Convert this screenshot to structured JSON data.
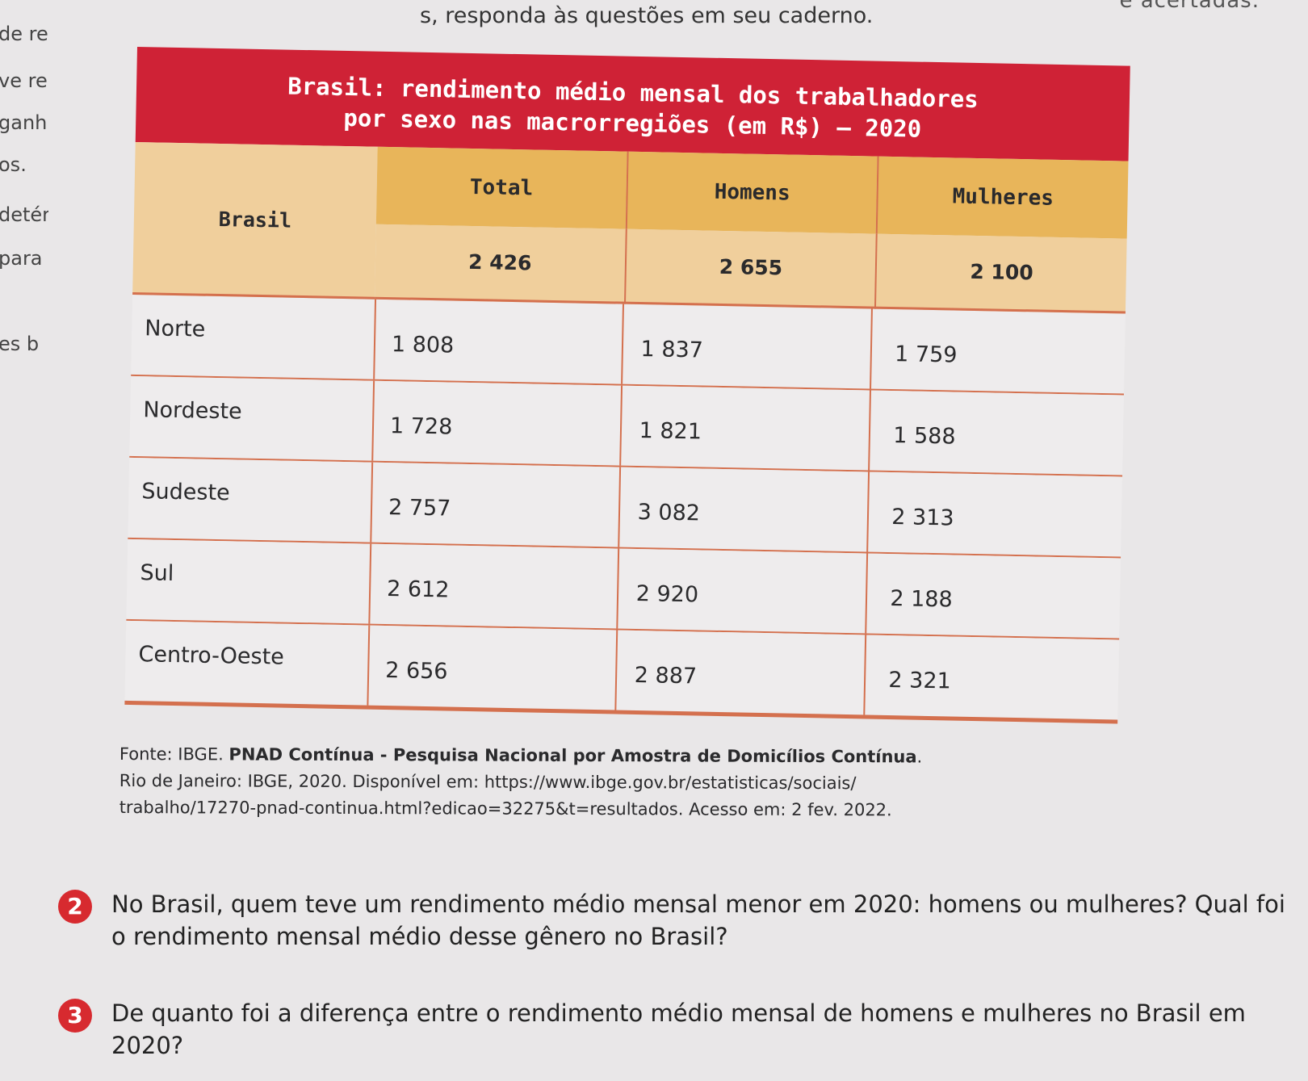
{
  "top": {
    "fragment_right": "e acertadas.",
    "fragment_main": "s, responda às questões em seu caderno."
  },
  "margin_fragments": [
    "de ren",
    "ve ren",
    "ganh",
    "os.",
    "detér",
    "para",
    "es b"
  ],
  "table": {
    "title_line1": "Brasil: rendimento médio mensal dos trabalhadores",
    "title_line2": "por sexo nas macrorregiões (em R$) – 2020",
    "header_region": "Brasil",
    "columns": [
      "Total",
      "Homens",
      "Mulheres"
    ],
    "brasil_values": [
      "2 426",
      "2 655",
      "2 100"
    ],
    "rows": [
      {
        "region": "Norte",
        "total": "1 808",
        "homens": "1 837",
        "mulheres": "1 759"
      },
      {
        "region": "Nordeste",
        "total": "1 728",
        "homens": "1 821",
        "mulheres": "1 588"
      },
      {
        "region": "Sudeste",
        "total": "2 757",
        "homens": "3 082",
        "mulheres": "2 313"
      },
      {
        "region": "Sul",
        "total": "2 612",
        "homens": "2 920",
        "mulheres": "2 188"
      },
      {
        "region": "Centro-Oeste",
        "total": "2 656",
        "homens": "2 887",
        "mulheres": "2 321"
      }
    ]
  },
  "source": {
    "prefix": "Fonte: IBGE. ",
    "title": "PNAD Contínua - Pesquisa Nacional por Amostra de Domicílios Contínua",
    "line2": "Rio de Janeiro: IBGE, 2020. Disponível em: https://www.ibge.gov.br/estatisticas/sociais/",
    "line3": "trabalho/17270-pnad-continua.html?edicao=32275&t=resultados. Acesso em: 2 fev. 2022."
  },
  "questions": [
    {
      "number": "2",
      "text": "No Brasil, quem teve um rendimento médio mensal menor em 2020: homens ou mulheres? Qual foi o rendimento mensal médio desse gênero no Brasil?"
    },
    {
      "number": "3",
      "text": "De quanto foi a diferença entre o rendimento médio mensal de homens e mulheres no Brasil em 2020?"
    }
  ],
  "colors": {
    "title_bg": "#cf2236",
    "header_bg": "#e8b55a",
    "subheader_bg": "#f0cf9c",
    "rule": "#d4704e",
    "badge": "#d72a2f"
  }
}
